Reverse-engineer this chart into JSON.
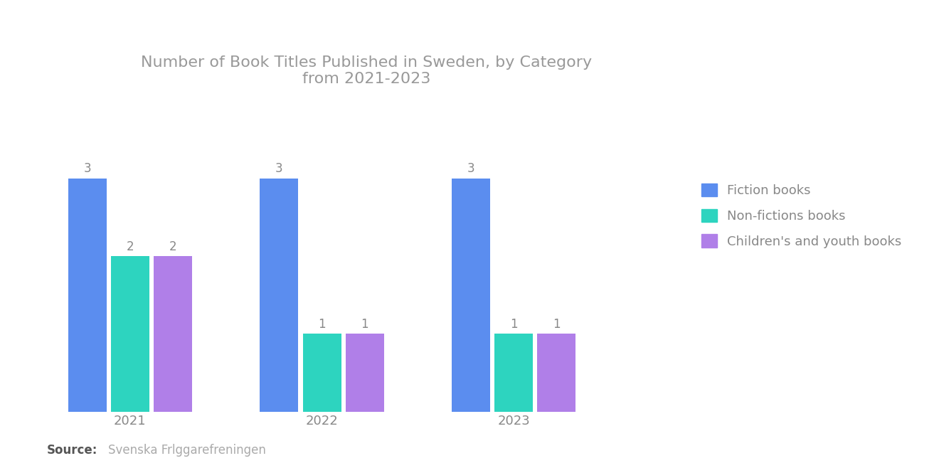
{
  "title": "Number of Book Titles Published in Sweden, by Category\nfrom 2021-2023",
  "years": [
    "2021",
    "2022",
    "2023"
  ],
  "categories": [
    "Fiction books",
    "Non-fictions books",
    "Children's and youth books"
  ],
  "values": {
    "Fiction books": [
      3,
      3,
      3
    ],
    "Non-fictions books": [
      2,
      1,
      1
    ],
    "Children's and youth books": [
      2,
      1,
      1
    ]
  },
  "colors": {
    "Fiction books": "#5B8DEF",
    "Non-fictions books": "#2DD4BF",
    "Children's and youth books": "#B07FE8"
  },
  "source_bold": "Source:",
  "source_text": "Svenska Frlggarefreningen",
  "background_color": "#FFFFFF",
  "title_color": "#999999",
  "label_color": "#888888",
  "bar_width": 0.13,
  "ylim": [
    0,
    4.2
  ],
  "title_fontsize": 16,
  "label_fontsize": 12,
  "legend_fontsize": 13,
  "source_fontsize": 12,
  "tick_fontsize": 13
}
